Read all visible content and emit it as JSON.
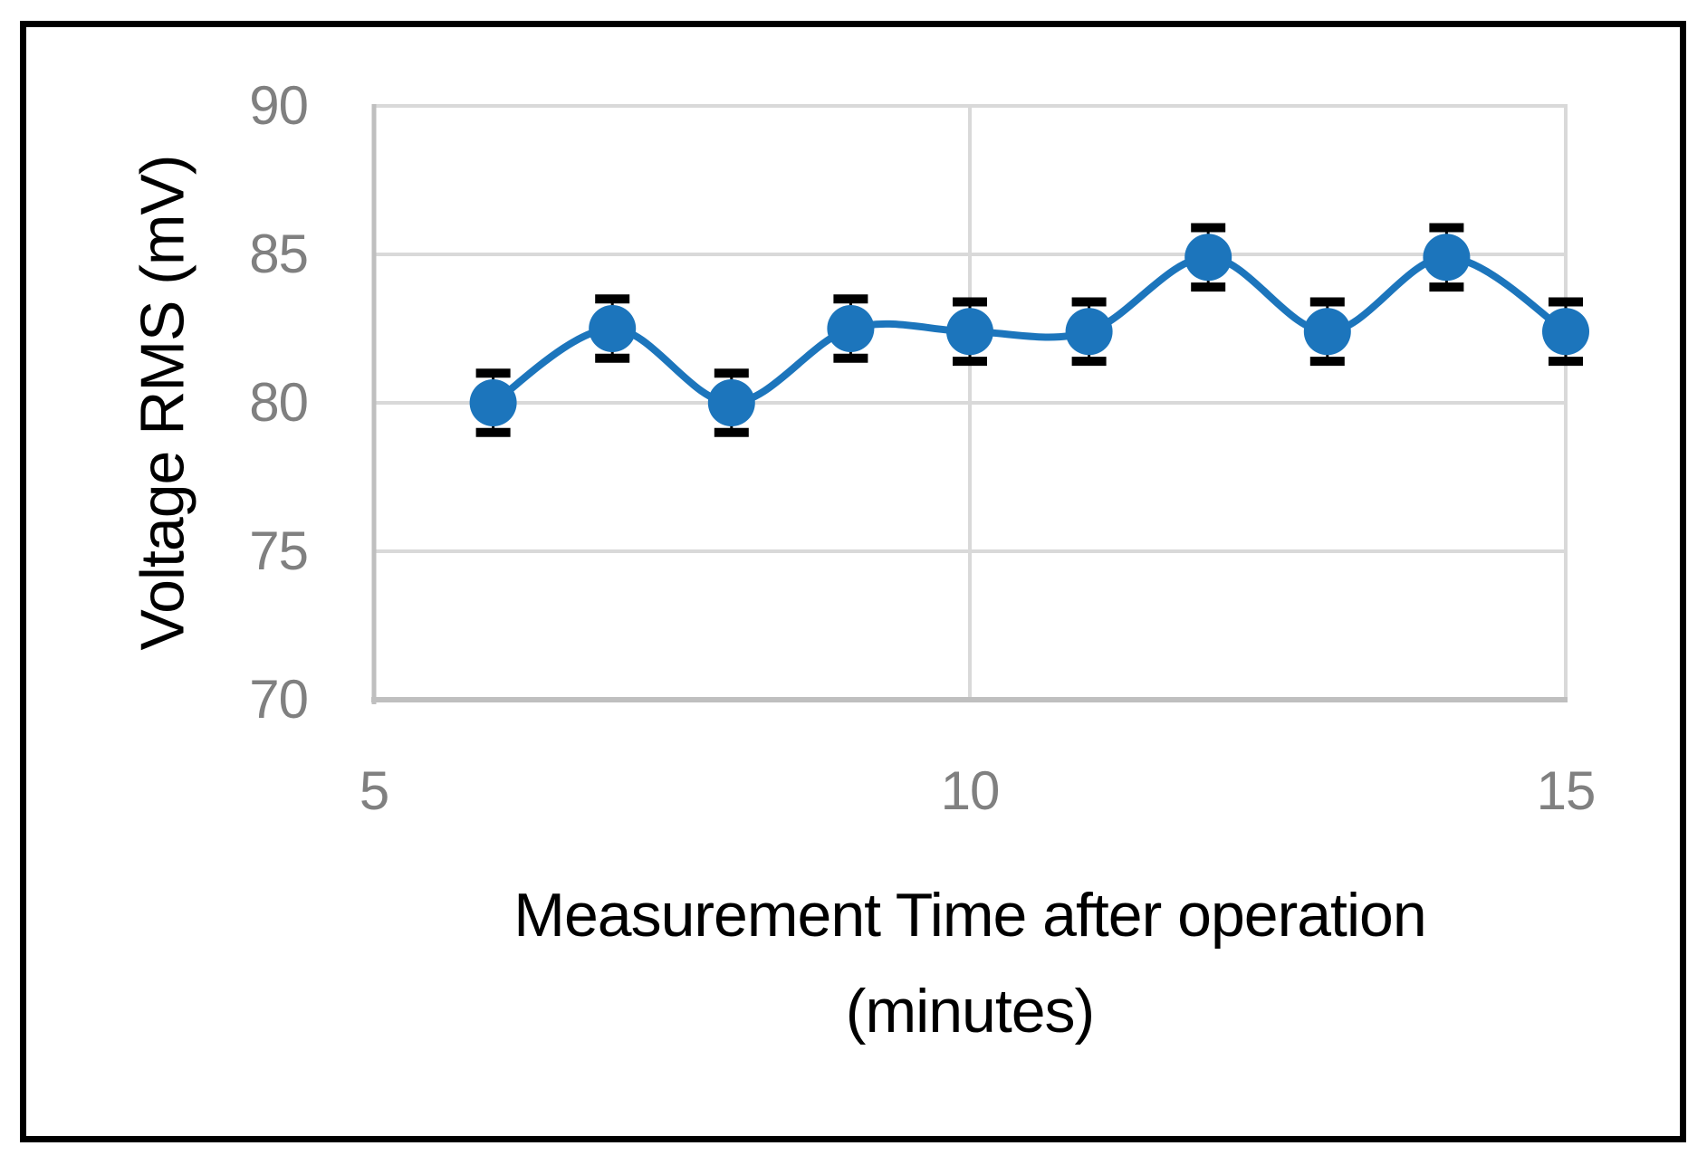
{
  "figure": {
    "background_color": "#FFFFFF",
    "border_color": "#000000"
  },
  "chart_data": {
    "type": "line",
    "title": "",
    "xlabel": "Measurement Time after operation (minutes)",
    "xlabel_lines": [
      "Measurement Time after operation",
      "(minutes)"
    ],
    "ylabel": "Voltage RMS (mV)",
    "x": [
      6,
      7,
      8,
      9,
      10,
      11,
      12,
      13,
      14,
      15
    ],
    "series": [
      {
        "name": "Voltage RMS",
        "values": [
          80,
          82.5,
          80,
          82.5,
          82.4,
          82.4,
          84.9,
          82.4,
          84.9,
          82.4
        ],
        "error_plus_mv": 1,
        "error_minus_mv": 1,
        "color": "#1C75BC",
        "marker": "circle",
        "smoothed": true
      }
    ],
    "xlim": [
      5,
      15
    ],
    "ylim": [
      70,
      90
    ],
    "xticks": [
      5,
      10,
      15
    ],
    "yticks": [
      90,
      85,
      80,
      75,
      70
    ],
    "grid": true,
    "legend": false,
    "colors": {
      "gridline": "#D9D9D9",
      "axis_line": "#BFBFBF",
      "tick_label": "#808080",
      "axis_label": "#000000",
      "error_bar": "#000000"
    }
  }
}
